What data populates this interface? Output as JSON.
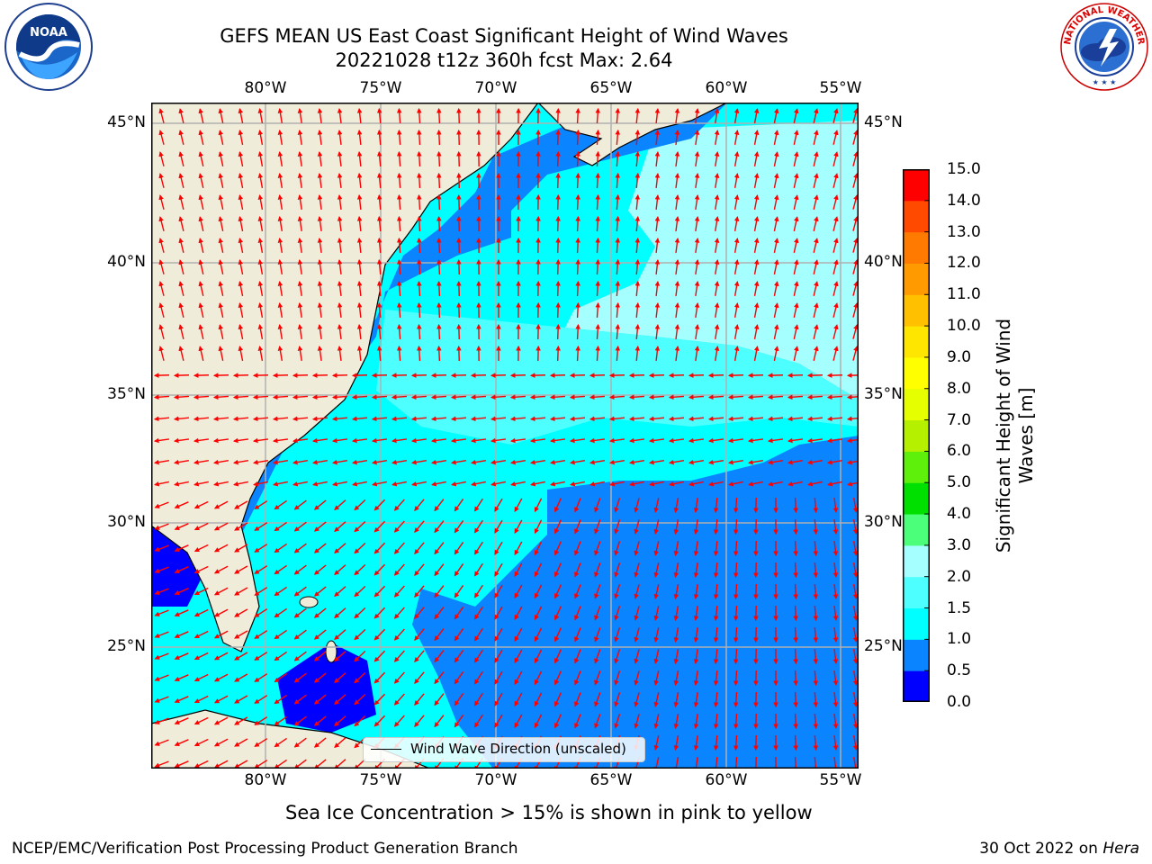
{
  "title": {
    "line1": "GEFS MEAN US East Coast Significant Height of Wind Waves",
    "line2": "20221028 t12z 360h fcst   Max: 2.64"
  },
  "logos": {
    "left": {
      "icon": "noaa-logo-icon",
      "text": "NOAA",
      "ring_text": "NATIONAL OCEANIC AND ATMOSPHERIC ADMINISTRATION · U.S. DEPARTMENT OF COMMERCE"
    },
    "right": {
      "icon": "nws-logo-icon",
      "ring_text": "NATIONAL WEATHER SERVICE"
    }
  },
  "map": {
    "lon_labels": [
      "80°W",
      "75°W",
      "70°W",
      "65°W",
      "60°W",
      "55°W"
    ],
    "lat_labels": [
      "45°N",
      "40°N",
      "35°N",
      "30°N",
      "25°N"
    ],
    "legend_text": "Wind Wave Direction (unscaled)",
    "land_color": "#efedda",
    "grid_color": "#b0b0b0",
    "arrow_color": "#ff0000"
  },
  "colorbar": {
    "label": "Significant Height of Wind Waves [m]",
    "label_line1": "Significant Height of Wind",
    "label_line2": "Waves [m]",
    "ticks": [
      "0.0",
      "0.5",
      "1.0",
      "1.5",
      "2.0",
      "3.0",
      "4.0",
      "5.0",
      "6.0",
      "7.0",
      "8.0",
      "9.0",
      "10.0",
      "11.0",
      "12.0",
      "13.0",
      "14.0",
      "15.0"
    ],
    "colors": [
      "#0000ff",
      "#0a84ff",
      "#00ffff",
      "#4dffff",
      "#a6ffff",
      "#4cff7a",
      "#00e000",
      "#5ef00a",
      "#b4f000",
      "#e6ff00",
      "#ffff00",
      "#ffe600",
      "#ffc000",
      "#ff9a00",
      "#ff7a00",
      "#ff4a00",
      "#ff0000"
    ]
  },
  "ice_note": "Sea Ice Concentration > 15% is shown in pink to yellow",
  "footer": {
    "left": "NCEP/EMC/Verification Post Processing Product Generation Branch",
    "date": "30 Oct 2022 on",
    "machine": "Hera"
  }
}
